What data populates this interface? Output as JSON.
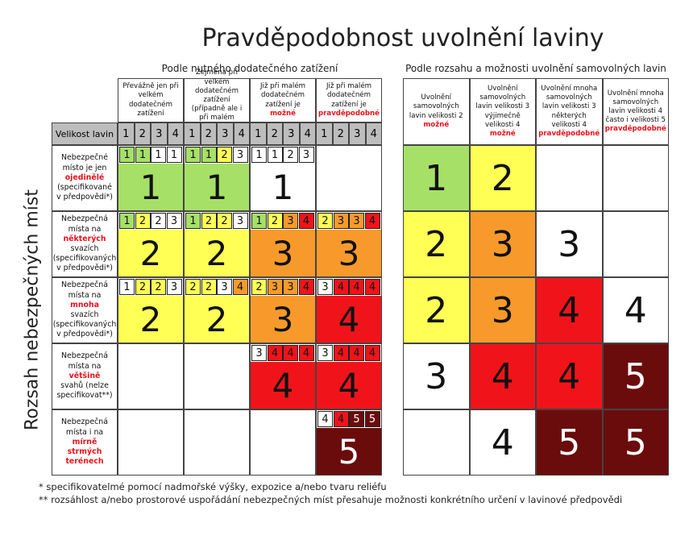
{
  "title": "Pravděpodobnost uvolnění laviny",
  "y_axis_label": "Rozsah nebezpečných míst",
  "left": {
    "header": "Podle nutného dodatečného zatížení",
    "size_label": "Velikost lavin",
    "columns": [
      {
        "text": "Převážně jen při velkém dodatečném zatížení",
        "sizes": [
          1,
          2,
          3,
          4
        ]
      },
      {
        "text": "Zejména při velkém dodatečném zatížení (případně ale i při malém zatížení)",
        "sizes": [
          1,
          2,
          3,
          4
        ]
      },
      {
        "text": "Již při malém dodatečném zatížení je",
        "emphasis": "možné",
        "sizes": [
          1,
          2,
          3,
          4
        ]
      },
      {
        "text": "Již při malém dodatečném zatížení je",
        "emphasis": "pravděpodobné",
        "sizes": [
          1,
          2,
          3,
          4
        ]
      }
    ],
    "rows": [
      [
        {
          "small": [
            {
              "value": 1,
              "color": "#a6e067"
            },
            {
              "value": 1,
              "color": "#a6e067"
            },
            {
              "value": 1,
              "color": "#ffffff"
            },
            {
              "value": 1,
              "color": "#ffffff"
            }
          ],
          "big": {
            "value": 1,
            "color": "#a6e067"
          }
        },
        {
          "small": [
            {
              "value": 1,
              "color": "#a6e067"
            },
            {
              "value": 1,
              "color": "#a6e067"
            },
            {
              "value": 2,
              "color": "#ffff55"
            },
            {
              "value": 3,
              "color": "#ffffff"
            }
          ],
          "big": {
            "value": 1,
            "color": "#a6e067"
          }
        },
        {
          "small": [
            {
              "value": 1,
              "color": "#ffffff"
            },
            {
              "value": 1,
              "color": "#ffffff"
            },
            {
              "value": 2,
              "color": "#ffffff"
            },
            {
              "value": 3,
              "color": "#ffffff"
            }
          ],
          "big": {
            "value": 1,
            "color": "#ffffff"
          }
        },
        null
      ],
      [
        {
          "small": [
            {
              "value": 1,
              "color": "#a6e067"
            },
            {
              "value": 2,
              "color": "#ffff55"
            },
            {
              "value": 2,
              "color": "#ffffff"
            },
            {
              "value": 3,
              "color": "#ffffff"
            }
          ],
          "big": {
            "value": 2,
            "color": "#ffff55"
          }
        },
        {
          "small": [
            {
              "value": 1,
              "color": "#a6e067"
            },
            {
              "value": 2,
              "color": "#ffff55"
            },
            {
              "value": 2,
              "color": "#ffff55"
            },
            {
              "value": 3,
              "color": "#ffffff"
            }
          ],
          "big": {
            "value": 2,
            "color": "#ffff55"
          }
        },
        {
          "small": [
            {
              "value": 1,
              "color": "#a6e067"
            },
            {
              "value": 2,
              "color": "#ffff55"
            },
            {
              "value": 3,
              "color": "#f79a2b"
            },
            {
              "value": 4,
              "color": "#f0141a"
            }
          ],
          "big": {
            "value": 3,
            "color": "#f79a2b"
          }
        },
        {
          "small": [
            {
              "value": 2,
              "color": "#ffff55"
            },
            {
              "value": 3,
              "color": "#f79a2b"
            },
            {
              "value": 3,
              "color": "#f79a2b"
            },
            {
              "value": 4,
              "color": "#f0141a"
            }
          ],
          "big": {
            "value": 3,
            "color": "#f79a2b"
          }
        }
      ],
      [
        {
          "small": [
            {
              "value": 1,
              "color": "#ffffff"
            },
            {
              "value": 2,
              "color": "#ffff55"
            },
            {
              "value": 2,
              "color": "#ffff55"
            },
            {
              "value": 3,
              "color": "#ffffff"
            }
          ],
          "big": {
            "value": 2,
            "color": "#ffff55"
          }
        },
        {
          "small": [
            {
              "value": 2,
              "color": "#ffff55"
            },
            {
              "value": 2,
              "color": "#ffff55"
            },
            {
              "value": 3,
              "color": "#ffffff"
            },
            {
              "value": 4,
              "color": "#f79a2b"
            }
          ],
          "big": {
            "value": 2,
            "color": "#ffff55"
          }
        },
        {
          "small": [
            {
              "value": 2,
              "color": "#ffff55"
            },
            {
              "value": 3,
              "color": "#f79a2b"
            },
            {
              "value": 3,
              "color": "#f79a2b"
            },
            {
              "value": 4,
              "color": "#f0141a"
            }
          ],
          "big": {
            "value": 3,
            "color": "#f79a2b"
          }
        },
        {
          "small": [
            {
              "value": 3,
              "color": "#ffffff"
            },
            {
              "value": 4,
              "color": "#f0141a"
            },
            {
              "value": 4,
              "color": "#f0141a"
            },
            {
              "value": 4,
              "color": "#f0141a"
            }
          ],
          "big": {
            "value": 4,
            "color": "#f0141a"
          }
        }
      ],
      [
        null,
        null,
        {
          "small": [
            {
              "value": 3,
              "color": "#ffffff"
            },
            {
              "value": 4,
              "color": "#f0141a"
            },
            {
              "value": 4,
              "color": "#f0141a"
            },
            {
              "value": 4,
              "color": "#f0141a"
            }
          ],
          "big": {
            "value": 4,
            "color": "#f0141a"
          }
        },
        {
          "small": [
            {
              "value": 3,
              "color": "#ffffff"
            },
            {
              "value": 4,
              "color": "#f0141a"
            },
            {
              "value": 4,
              "color": "#f0141a"
            },
            {
              "value": 4,
              "color": "#f0141a"
            }
          ],
          "big": {
            "value": 4,
            "color": "#f0141a"
          }
        }
      ],
      [
        null,
        null,
        null,
        {
          "small": [
            {
              "value": 4,
              "color": "#ffffff"
            },
            {
              "value": 4,
              "color": "#f0141a"
            },
            {
              "value": 5,
              "color": "#6b0c0c"
            },
            {
              "value": 5,
              "color": "#6b0c0c"
            }
          ],
          "big": {
            "value": 5,
            "color": "#6b0c0c"
          }
        }
      ]
    ]
  },
  "right": {
    "header": "Podle rozsahu a možnosti uvolnění samovolných lavin",
    "columns": [
      {
        "text": "Uvolnění samovolných lavin velikosti 2",
        "emphasis": "možné"
      },
      {
        "text": "Uvolnění samovolných lavin velikosti 3 výjimečně velikosti 4",
        "emphasis": "možné"
      },
      {
        "text": "Uvolnění mnoha samovolných lavin velikosti 3 některých velikosti 4",
        "emphasis": "pravděpodobné"
      },
      {
        "text": "Uvolnění mnoha samovolných lavin velikosti 4 často i velikosti 5",
        "emphasis": "pravděpodobné"
      }
    ],
    "rows": [
      [
        {
          "value": 1,
          "color": "#a6e067"
        },
        {
          "value": 2,
          "color": "#ffff55"
        },
        null,
        null
      ],
      [
        {
          "value": 2,
          "color": "#ffff55"
        },
        {
          "value": 3,
          "color": "#f79a2b"
        },
        {
          "value": 3,
          "color": "#ffffff"
        },
        null
      ],
      [
        {
          "value": 2,
          "color": "#ffff55"
        },
        {
          "value": 3,
          "color": "#f79a2b"
        },
        {
          "value": 4,
          "color": "#f0141a"
        },
        {
          "value": 4,
          "color": "#ffffff"
        }
      ],
      [
        {
          "value": 3,
          "color": "#ffffff"
        },
        {
          "value": 4,
          "color": "#f0141a"
        },
        {
          "value": 4,
          "color": "#f0141a"
        },
        {
          "value": 5,
          "color": "#6b0c0c"
        }
      ],
      [
        null,
        {
          "value": 4,
          "color": "#ffffff"
        },
        {
          "value": 5,
          "color": "#6b0c0c"
        },
        {
          "value": 5,
          "color": "#6b0c0c"
        }
      ]
    ]
  },
  "row_labels": [
    {
      "before": "Nebezpečné místo je jen",
      "emphasis": "ojedinělé",
      "after": "(specifikované v předpovědi*)"
    },
    {
      "before": "Nebezpečná místa na",
      "emphasis": "některých",
      "after": "svazích (specifikovaných v předpovědi*)"
    },
    {
      "before": "Nebezpečná místa na",
      "emphasis": "mnoha",
      "after": "svazích (specifikovaných v předpovědi*)"
    },
    {
      "before": "Nebezpečná místa na",
      "emphasis": "většině",
      "after": "svahů (nelze specifikovat**)"
    },
    {
      "before": "Nebezpečná místa i na",
      "emphasis": "mírně strmých terénech"
    }
  ],
  "footnotes": [
    "* specifikovatelmé pomocí nadmořské výšky, expozice a/nebo tvaru reliéfu",
    "** rozsáhlost a/nebo prostorové uspořádání nebezpečných míst přesahuje možnosti konkrétního určení v lavinové předpovědi"
  ]
}
